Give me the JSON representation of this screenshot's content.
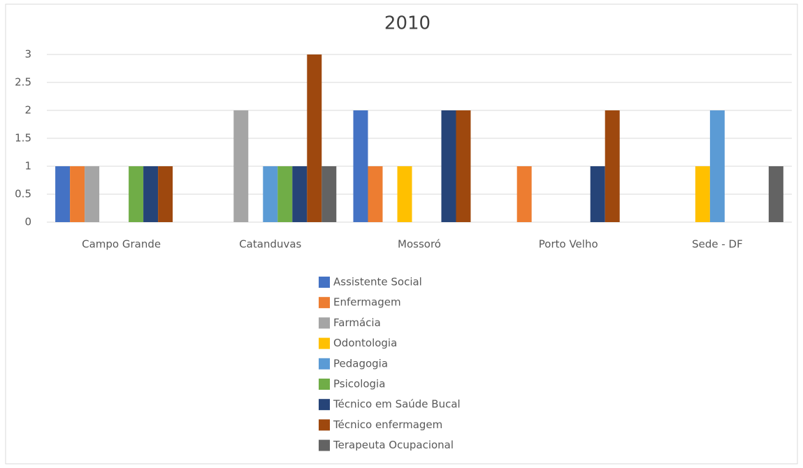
{
  "chart_data": {
    "type": "bar",
    "title": "2010",
    "categories": [
      "Campo Grande",
      "Catanduvas",
      "Mossoró",
      "Porto Velho",
      "Sede - DF"
    ],
    "series": [
      {
        "name": "Assistente Social",
        "color": "#4472c4",
        "values": [
          1,
          null,
          2,
          null,
          null
        ]
      },
      {
        "name": "Enfermagem",
        "color": "#ed7d31",
        "values": [
          1,
          null,
          1,
          1,
          null
        ]
      },
      {
        "name": "Farmácia",
        "color": "#a5a5a5",
        "values": [
          1,
          2,
          null,
          null,
          null
        ]
      },
      {
        "name": "Odontologia",
        "color": "#ffc000",
        "values": [
          null,
          null,
          1,
          null,
          1
        ]
      },
      {
        "name": "Pedagogia",
        "color": "#5b9bd5",
        "values": [
          null,
          1,
          null,
          null,
          2
        ]
      },
      {
        "name": "Psicologia",
        "color": "#70ad47",
        "values": [
          1,
          1,
          null,
          null,
          null
        ]
      },
      {
        "name": "Técnico em Saúde Bucal",
        "color": "#264478",
        "values": [
          1,
          1,
          2,
          1,
          null
        ]
      },
      {
        "name": "Técnico enfermagem",
        "color": "#9e480e",
        "values": [
          1,
          3,
          2,
          2,
          null
        ]
      },
      {
        "name": "Terapeuta Ocupacional",
        "color": "#636363",
        "values": [
          null,
          1,
          null,
          null,
          1
        ]
      }
    ],
    "ylim": [
      0,
      3
    ],
    "yticks": [
      0,
      0.5,
      1,
      1.5,
      2,
      2.5,
      3
    ],
    "grid": true,
    "legend": "bottom"
  }
}
